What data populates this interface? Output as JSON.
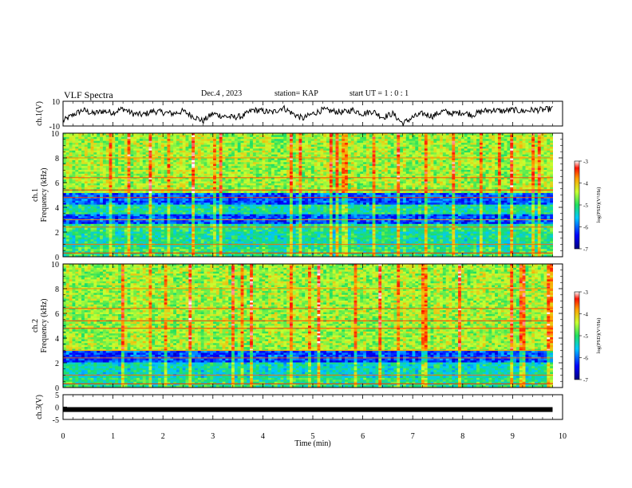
{
  "header": {
    "title": "VLF Spectra",
    "date": "Dec.4 , 2023",
    "station": "station= KAP",
    "start": "start  UT =  1 : 0  : 1"
  },
  "chart_data": [
    {
      "type": "line",
      "ylabel": "ch.1(V)",
      "ylim": [
        -10,
        10
      ],
      "yticks": [
        "10",
        "-10"
      ],
      "xlim": [
        0,
        10
      ],
      "series": [
        {
          "x": [
            0,
            0.2,
            0.4,
            0.6,
            0.8,
            1.0,
            1.2,
            1.4,
            1.6,
            1.8,
            2.0,
            2.2,
            2.4,
            2.6,
            2.8,
            3.0,
            3.2,
            3.4,
            3.6,
            3.8,
            4.0,
            4.2,
            4.4,
            4.6,
            4.8,
            5.0,
            5.2,
            5.4,
            5.6,
            5.8,
            6.0,
            6.2,
            6.4,
            6.6,
            6.8,
            7.0,
            7.2,
            7.4,
            7.6,
            7.8,
            8.0,
            8.2,
            8.4,
            8.6,
            8.8,
            9.0,
            9.2,
            9.4,
            9.6,
            9.8
          ],
          "values": [
            -6,
            -1,
            3,
            0,
            2,
            1,
            4,
            0,
            -1,
            2,
            1,
            0,
            2,
            -2,
            -6,
            0,
            -2,
            -3,
            -2,
            3,
            2,
            1,
            5,
            0,
            -4,
            0,
            3,
            2,
            1,
            3,
            0,
            2,
            -3,
            0,
            -8,
            -3,
            0,
            -2,
            2,
            0,
            1,
            -1,
            2,
            3,
            2,
            3,
            2,
            3,
            3,
            4
          ]
        }
      ]
    },
    {
      "type": "heatmap",
      "ylabel": "ch.1\nFrequency (kHz)",
      "ylim": [
        0,
        10
      ],
      "yticks": [
        "0",
        "2",
        "4",
        "6",
        "8",
        "10"
      ],
      "xlim": [
        0,
        10
      ],
      "colorbar": {
        "label": "log(PSD)(V²/Hz)",
        "range": [
          -7,
          -3
        ],
        "ticks": [
          "-3",
          "-4",
          "-5",
          "-6",
          "-7"
        ]
      }
    },
    {
      "type": "heatmap",
      "ylabel": "ch.2\nFrequency (kHz)",
      "ylim": [
        0,
        10
      ],
      "yticks": [
        "0",
        "2",
        "4",
        "6",
        "8",
        "10"
      ],
      "xlim": [
        0,
        10
      ],
      "colorbar": {
        "label": "log(PSD)(V²/Hz)",
        "range": [
          -7,
          -3
        ],
        "ticks": [
          "-3",
          "-4",
          "-5",
          "-6",
          "-7"
        ]
      }
    },
    {
      "type": "line",
      "ylabel": "ch.3(V)",
      "ylim": [
        -5,
        5
      ],
      "yticks": [
        "5",
        "0",
        "-5"
      ],
      "xlim": [
        0,
        10
      ],
      "xticks": [
        "0",
        "1",
        "2",
        "3",
        "4",
        "5",
        "6",
        "7",
        "8",
        "9",
        "10"
      ],
      "xlabel": "Time (min)",
      "series": [
        {
          "x": [
            0,
            9.8
          ],
          "values": [
            -1,
            -1
          ]
        }
      ]
    }
  ]
}
